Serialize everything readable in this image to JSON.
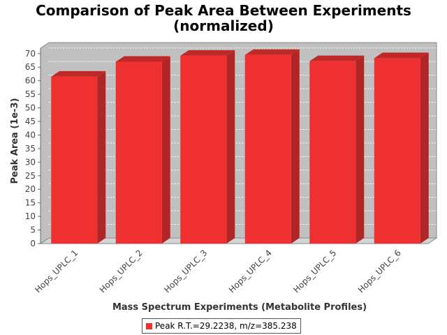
{
  "chart_data": {
    "type": "bar",
    "title_line1": "Comparison of Peak Area Between Experiments",
    "title_line2": "(normalized)",
    "xlabel": "Mass Spectrum Experiments (Metabolite Profiles)",
    "ylabel": "Peak Area (1e-3)",
    "categories": [
      "Hops_UPLC_1",
      "Hops_UPLC_2",
      "Hops_UPLC_3",
      "Hops_UPLC_4",
      "Hops_UPLC_5",
      "Hops_UPLC_6"
    ],
    "series": [
      {
        "name": "Peak R.T.=29.2238, m/z=385.238",
        "values": [
          61.5,
          67.0,
          69.2,
          69.5,
          67.2,
          68.3
        ]
      }
    ],
    "ylim": [
      0,
      72
    ],
    "yticks": [
      0,
      5,
      10,
      15,
      20,
      25,
      30,
      35,
      40,
      45,
      50,
      55,
      60,
      65,
      70
    ],
    "grid": true,
    "legend_position": "bottom",
    "colors": {
      "bar": "#ee3030",
      "bar_top": "#c02828",
      "bar_side": "#b02525",
      "plot_bg": "#c0c0c0",
      "wall": "#d4d4d4",
      "grid": "#ffffff"
    }
  }
}
